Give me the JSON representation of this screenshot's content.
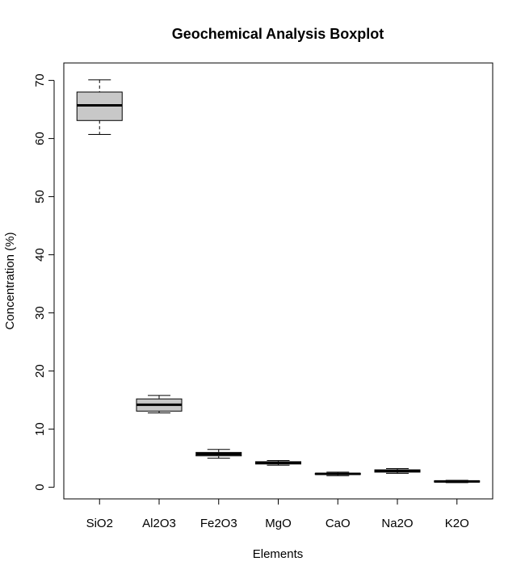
{
  "chart_data": {
    "type": "boxplot",
    "title": "Geochemical Analysis Boxplot",
    "xlabel": "Elements",
    "ylabel": "Concentration (%)",
    "ylim": [
      -2,
      73
    ],
    "yticks": [
      0,
      10,
      20,
      30,
      40,
      50,
      60,
      70
    ],
    "grid": false,
    "box_fill": "#c8c8c8",
    "categories": [
      "SiO2",
      "Al2O3",
      "Fe2O3",
      "MgO",
      "CaO",
      "Na2O",
      "K2O"
    ],
    "boxes": [
      {
        "min": 60.7,
        "q1": 63.1,
        "median": 65.7,
        "q3": 68.0,
        "max": 70.1
      },
      {
        "min": 12.8,
        "q1": 13.1,
        "median": 14.2,
        "q3": 15.2,
        "max": 15.8
      },
      {
        "min": 5.0,
        "q1": 5.4,
        "median": 5.7,
        "q3": 6.0,
        "max": 6.5
      },
      {
        "min": 3.8,
        "q1": 4.0,
        "median": 4.2,
        "q3": 4.4,
        "max": 4.6
      },
      {
        "min": 2.0,
        "q1": 2.2,
        "median": 2.3,
        "q3": 2.4,
        "max": 2.6
      },
      {
        "min": 2.4,
        "q1": 2.6,
        "median": 2.8,
        "q3": 3.0,
        "max": 3.2
      },
      {
        "min": 0.8,
        "q1": 0.9,
        "median": 1.0,
        "q3": 1.1,
        "max": 1.2
      }
    ]
  }
}
